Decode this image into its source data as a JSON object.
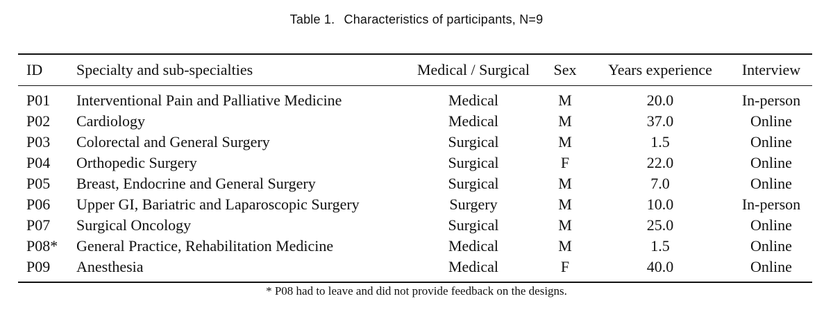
{
  "caption": {
    "label": "Table 1.",
    "text": "Characteristics of participants, N=9"
  },
  "table": {
    "headers": [
      "ID",
      "Specialty and sub-specialties",
      "Medical / Surgical",
      "Sex",
      "Years experience",
      "Interview"
    ],
    "rows": [
      [
        "P01",
        "Interventional Pain and Palliative Medicine",
        "Medical",
        "M",
        "20.0",
        "In-person"
      ],
      [
        "P02",
        "Cardiology",
        "Medical",
        "M",
        "37.0",
        "Online"
      ],
      [
        "P03",
        "Colorectal and General Surgery",
        "Surgical",
        "M",
        "1.5",
        "Online"
      ],
      [
        "P04",
        "Orthopedic Surgery",
        "Surgical",
        "F",
        "22.0",
        "Online"
      ],
      [
        "P05",
        "Breast, Endocrine and General Surgery",
        "Surgical",
        "M",
        "7.0",
        "Online"
      ],
      [
        "P06",
        "Upper GI, Bariatric and Laparoscopic Surgery",
        "Surgery",
        "M",
        "10.0",
        "In-person"
      ],
      [
        "P07",
        "Surgical Oncology",
        "Surgical",
        "M",
        "25.0",
        "Online"
      ],
      [
        "P08*",
        "General Practice, Rehabilitation Medicine",
        "Medical",
        "M",
        "1.5",
        "Online"
      ],
      [
        "P09",
        "Anesthesia",
        "Medical",
        "F",
        "40.0",
        "Online"
      ]
    ]
  },
  "footnote": "* P08 had to leave and did not provide feedback on the designs."
}
